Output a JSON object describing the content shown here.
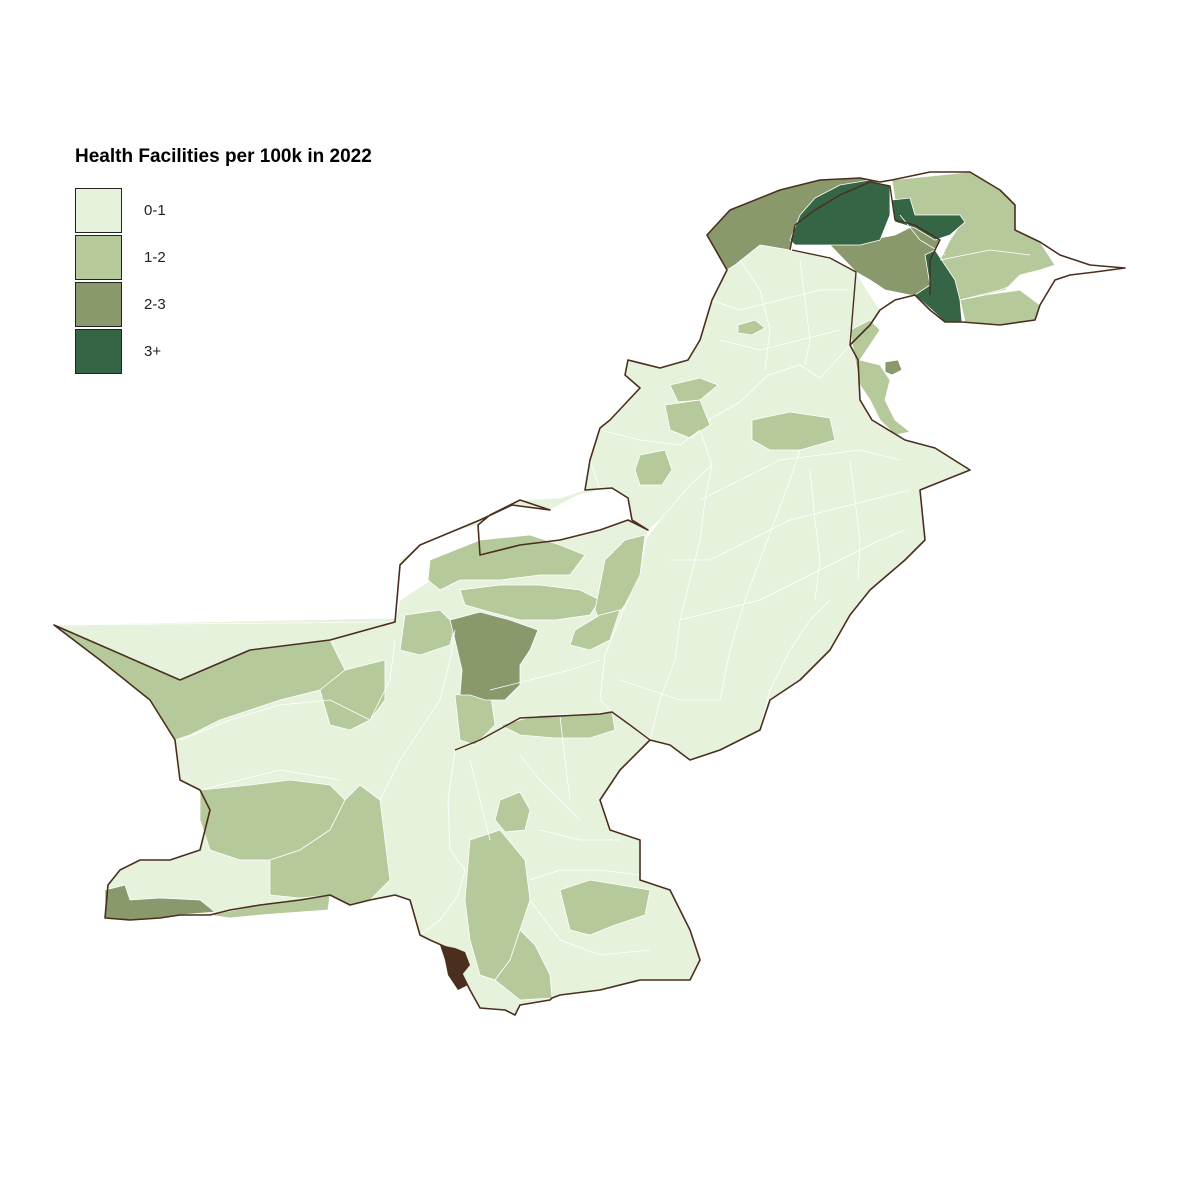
{
  "legend": {
    "title": "Health Facilities per 100k in 2022",
    "classes": [
      {
        "label": "0-1",
        "color": "#e6f2dc"
      },
      {
        "label": "1-2",
        "color": "#b5c99b"
      },
      {
        "label": "2-3",
        "color": "#89996b"
      },
      {
        "label": "3+",
        "color": "#356544"
      }
    ]
  },
  "map": {
    "outline_color": "#4a2e1e",
    "internal_border_color": "#ffffff"
  }
}
